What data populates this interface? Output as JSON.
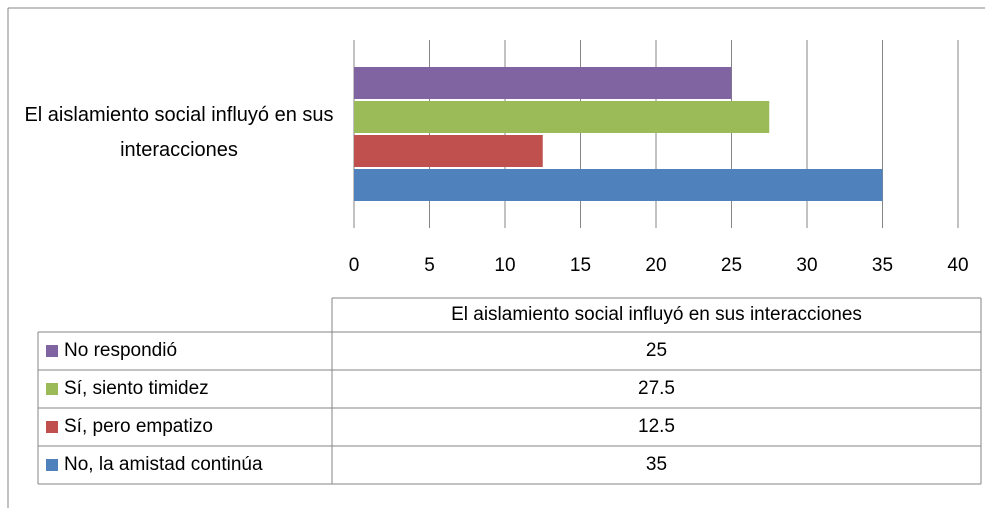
{
  "chart_data": {
    "type": "bar",
    "orientation": "horizontal",
    "categories": [
      "El aislamiento social influyó en sus interacciones"
    ],
    "series": [
      {
        "name": "No respondió",
        "color": "#8064a2",
        "values": [
          25
        ]
      },
      {
        "name": "Sí, siento timidez",
        "color": "#9bbb59",
        "values": [
          27.5
        ]
      },
      {
        "name": "Sí, pero empatizo",
        "color": "#c0504d",
        "values": [
          12.5
        ]
      },
      {
        "name": "No, la amistad continúa",
        "color": "#4f81bd",
        "values": [
          35
        ]
      }
    ],
    "xlim": [
      0,
      40
    ],
    "xticks": [
      0,
      5,
      10,
      15,
      20,
      25,
      30,
      35,
      40
    ],
    "grid": true,
    "data_table": true
  }
}
